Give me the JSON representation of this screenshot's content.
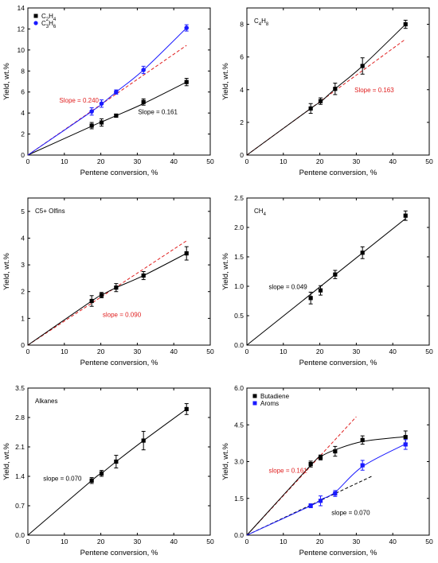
{
  "chart_data": [
    {
      "type": "scatter",
      "xlabel": "Pentene conversion, %",
      "ylabel": "Yield, wt.%",
      "xlim": [
        0,
        50
      ],
      "ylim": [
        0,
        14
      ],
      "xticks": [
        0,
        10,
        20,
        30,
        40,
        50
      ],
      "yticks": [
        0,
        2,
        4,
        6,
        8,
        10,
        12,
        14
      ],
      "ytick_labels": [
        "0",
        "2",
        "4",
        "6",
        "8",
        "10",
        "12",
        "14"
      ],
      "legend_position": "top-left",
      "series": [
        {
          "name": "C2H4",
          "name_base": "C",
          "name_sub1": "2",
          "name_mid": "H",
          "name_sub2": "4",
          "color": "#000000",
          "marker": "square",
          "x": [
            17.5,
            20.2,
            24.2,
            31.7,
            43.5
          ],
          "y": [
            2.8,
            3.1,
            3.75,
            5.05,
            6.95
          ],
          "err": [
            0.3,
            0.35,
            0.15,
            0.3,
            0.35
          ],
          "curve": [
            [
              0,
              0
            ],
            [
              17.5,
              2.75
            ],
            [
              20.2,
              3.15
            ],
            [
              24.2,
              3.75
            ],
            [
              31.7,
              4.9
            ],
            [
              43.5,
              6.95
            ]
          ]
        },
        {
          "name": "C3H6",
          "name_base": "C",
          "name_sub1": "3",
          "name_mid": "H",
          "name_sub2": "6",
          "color": "#1a1aff",
          "marker": "circle",
          "x": [
            17.5,
            20.2,
            24.2,
            31.7,
            43.5
          ],
          "y": [
            4.15,
            4.9,
            6.0,
            8.1,
            12.1
          ],
          "err": [
            0.35,
            0.35,
            0.2,
            0.35,
            0.3
          ],
          "curve": [
            [
              0,
              0
            ],
            [
              17.5,
              4.15
            ],
            [
              20.2,
              4.85
            ],
            [
              24.2,
              6.0
            ],
            [
              31.7,
              8.1
            ],
            [
              43.5,
              12.1
            ]
          ]
        }
      ],
      "dashed_lines": [
        {
          "color": "#e02020",
          "x": [
            0,
            43.5
          ],
          "y": [
            0,
            10.44
          ]
        }
      ],
      "annotations": [
        {
          "text": "Slope = 0.240",
          "color": "#e02020",
          "x": 8.6,
          "y": 5.0
        },
        {
          "text": "Slope = 0.161",
          "color": "#000000",
          "x": 30.2,
          "y": 3.9
        }
      ]
    },
    {
      "type": "scatter",
      "title": "C4H8",
      "title_base": "C",
      "title_sub1": "4",
      "title_mid": "H",
      "title_sub2": "8",
      "xlabel": "Pentene conversion, %",
      "ylabel": "Yield, wt.%",
      "xlim": [
        0,
        50
      ],
      "ylim": [
        0,
        9
      ],
      "xticks": [
        0,
        10,
        20,
        30,
        40,
        50
      ],
      "yticks": [
        0,
        2,
        4,
        6,
        8
      ],
      "ytick_labels": [
        "0",
        "2",
        "4",
        "6",
        "8"
      ],
      "series": [
        {
          "name": "",
          "color": "#000000",
          "marker": "square",
          "x": [
            17.5,
            20.2,
            24.2,
            31.7,
            43.5
          ],
          "y": [
            2.85,
            3.3,
            4.05,
            5.45,
            8.0
          ],
          "err": [
            0.3,
            0.2,
            0.35,
            0.5,
            0.25
          ],
          "curve": [
            [
              0,
              0
            ],
            [
              17.5,
              2.85
            ],
            [
              20.2,
              3.25
            ],
            [
              24.2,
              4.05
            ],
            [
              31.7,
              5.45
            ],
            [
              43.5,
              8.0
            ]
          ]
        }
      ],
      "dashed_lines": [
        {
          "color": "#e02020",
          "x": [
            0,
            43.5
          ],
          "y": [
            0,
            7.09
          ]
        }
      ],
      "annotations": [
        {
          "text": "Slope = 0.163",
          "color": "#e02020",
          "x": 29.5,
          "y": 3.85
        }
      ]
    },
    {
      "type": "scatter",
      "title": "C5+ Olfins",
      "xlabel": "Pentene conversion, %",
      "ylabel": "Yield, wt.%",
      "xlim": [
        0,
        50
      ],
      "ylim": [
        0,
        5.5
      ],
      "xticks": [
        0,
        10,
        20,
        30,
        40,
        50
      ],
      "yticks": [
        0,
        1,
        2,
        3,
        4,
        5
      ],
      "ytick_labels": [
        "0",
        "1",
        "2",
        "3",
        "4",
        "5"
      ],
      "series": [
        {
          "name": "",
          "color": "#000000",
          "marker": "square",
          "x": [
            17.5,
            20.2,
            24.2,
            31.7,
            43.5
          ],
          "y": [
            1.65,
            1.87,
            2.15,
            2.6,
            3.43
          ],
          "err": [
            0.2,
            0.1,
            0.15,
            0.15,
            0.25
          ],
          "curve": [
            [
              0,
              0
            ],
            [
              17.5,
              1.65
            ],
            [
              20.2,
              1.87
            ],
            [
              24.2,
              2.15
            ],
            [
              31.7,
              2.6
            ],
            [
              43.5,
              3.43
            ]
          ]
        }
      ],
      "dashed_lines": [
        {
          "color": "#e02020",
          "x": [
            0,
            43.5
          ],
          "y": [
            0,
            3.9
          ]
        }
      ],
      "annotations": [
        {
          "text": "slope = 0.090",
          "color": "#e02020",
          "x": 20.5,
          "y": 1.05
        }
      ]
    },
    {
      "type": "scatter",
      "title": "CH4",
      "title_base": "CH",
      "title_sub1": "4",
      "xlabel": "Pentene conversion, %",
      "ylabel": "Yield, wt.%",
      "xlim": [
        0,
        50
      ],
      "ylim": [
        0,
        2.5
      ],
      "xticks": [
        0,
        10,
        20,
        30,
        40,
        50
      ],
      "yticks": [
        0,
        0.5,
        1.0,
        1.5,
        2.0,
        2.5
      ],
      "ytick_labels": [
        "0.0",
        "0.5",
        "1.0",
        "1.5",
        "2.0",
        "2.5"
      ],
      "series": [
        {
          "name": "",
          "color": "#000000",
          "marker": "square",
          "x": [
            17.5,
            20.2,
            24.2,
            31.7,
            43.5
          ],
          "y": [
            0.8,
            0.93,
            1.2,
            1.57,
            2.2
          ],
          "err": [
            0.1,
            0.08,
            0.07,
            0.1,
            0.08
          ],
          "curve": [
            [
              0,
              0
            ],
            [
              43.5,
              2.15
            ]
          ]
        }
      ],
      "dashed_lines": [],
      "annotations": [
        {
          "text": "slope = 0.049",
          "color": "#000000",
          "x": 6.0,
          "y": 0.95
        }
      ]
    },
    {
      "type": "scatter",
      "title": "Alkanes",
      "xlabel": "Pentene conversion, %",
      "ylabel": "Yield, wt.%",
      "xlim": [
        0,
        50
      ],
      "ylim": [
        0,
        3.5
      ],
      "xticks": [
        0,
        10,
        20,
        30,
        40,
        50
      ],
      "yticks": [
        0,
        0.7,
        1.4,
        2.1,
        2.8,
        3.5
      ],
      "ytick_labels": [
        "0.0",
        "0.7",
        "1.4",
        "2.1",
        "2.8",
        "3.5"
      ],
      "series": [
        {
          "name": "",
          "color": "#000000",
          "marker": "square",
          "x": [
            17.5,
            20.2,
            24.2,
            31.7,
            43.5
          ],
          "y": [
            1.3,
            1.47,
            1.75,
            2.25,
            3.0
          ],
          "err": [
            0.07,
            0.07,
            0.15,
            0.22,
            0.13
          ],
          "curve": [
            [
              0,
              0
            ],
            [
              17.5,
              1.3
            ],
            [
              20.2,
              1.47
            ],
            [
              24.2,
              1.75
            ],
            [
              31.7,
              2.25
            ],
            [
              43.5,
              3.0
            ]
          ]
        }
      ],
      "dashed_lines": [],
      "annotations": [
        {
          "text": "slope = 0.070",
          "color": "#000000",
          "x": 4.2,
          "y": 1.3
        }
      ]
    },
    {
      "type": "scatter",
      "xlabel": "Pentene conversion, %",
      "ylabel": "Yield, wt.%",
      "xlim": [
        0,
        50
      ],
      "ylim": [
        0,
        6.0
      ],
      "xticks": [
        0,
        10,
        20,
        30,
        40,
        50
      ],
      "yticks": [
        0,
        1.5,
        3.0,
        4.5,
        6.0
      ],
      "ytick_labels": [
        "0.0",
        "1.5",
        "3.0",
        "4.5",
        "6.0"
      ],
      "legend_position": "top-left",
      "series": [
        {
          "name": "Butadiene",
          "color": "#000000",
          "marker": "square",
          "x": [
            17.5,
            20.2,
            24.2,
            31.7,
            43.5
          ],
          "y": [
            2.9,
            3.17,
            3.42,
            3.88,
            4.0
          ],
          "err": [
            0.12,
            0.1,
            0.2,
            0.17,
            0.25
          ],
          "curve": [
            [
              0,
              0
            ],
            [
              17.5,
              2.85
            ],
            [
              20.2,
              3.2
            ],
            [
              24.2,
              3.48
            ],
            [
              31.7,
              3.82
            ],
            [
              43.5,
              4.02
            ]
          ]
        },
        {
          "name": "Aroms",
          "color": "#1a1aff",
          "marker": "square",
          "x": [
            17.5,
            20.2,
            24.2,
            31.7,
            43.5
          ],
          "y": [
            1.2,
            1.4,
            1.7,
            2.85,
            3.7
          ],
          "err": [
            0.08,
            0.2,
            0.12,
            0.2,
            0.2
          ],
          "curve": [
            [
              0,
              0
            ],
            [
              17.5,
              1.2
            ],
            [
              20.2,
              1.45
            ],
            [
              24.2,
              1.75
            ],
            [
              31.7,
              2.8
            ],
            [
              43.5,
              3.72
            ]
          ]
        }
      ],
      "dashed_lines": [
        {
          "color": "#e02020",
          "x": [
            0,
            30.0
          ],
          "y": [
            0,
            4.83
          ]
        },
        {
          "color": "#000000",
          "x": [
            0,
            34.5
          ],
          "y": [
            0,
            2.42
          ]
        }
      ],
      "annotations": [
        {
          "text": "slope = 0.161",
          "color": "#e02020",
          "x": 6.0,
          "y": 2.55
        },
        {
          "text": "slope = 0.070",
          "color": "#000000",
          "x": 23.2,
          "y": 0.82
        }
      ]
    }
  ]
}
